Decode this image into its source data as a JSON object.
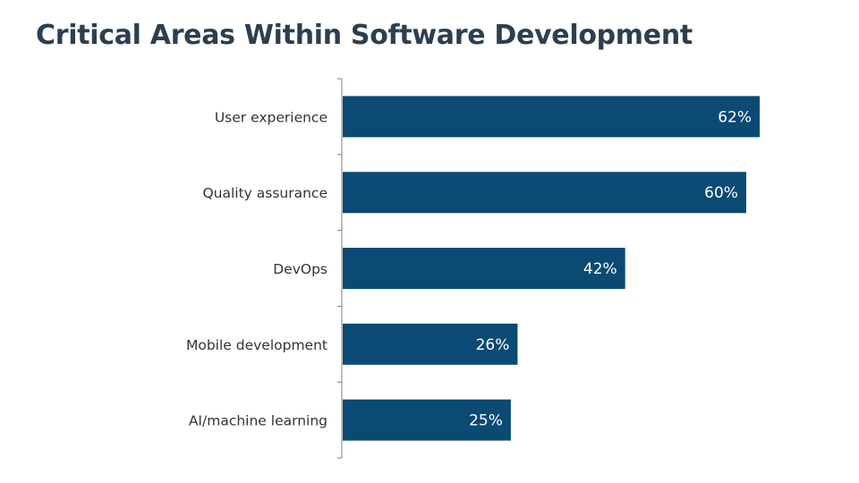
{
  "page": {
    "title": "Critical Areas Within Software Development"
  },
  "chart_data": {
    "type": "bar",
    "orientation": "horizontal",
    "title": "Critical Areas Within Software Development",
    "categories": [
      "User experience",
      "Quality assurance",
      "DevOps",
      "Mobile development",
      "AI/machine learning"
    ],
    "values": [
      62,
      60,
      42,
      26,
      25
    ],
    "value_labels": [
      "62%",
      "60%",
      "42%",
      "26%",
      "25%"
    ],
    "xlim": [
      0,
      70
    ],
    "xlabel": "",
    "ylabel": "",
    "grid": false,
    "legend": "none",
    "colors": {
      "bar": "#0b4a72",
      "axis": "#7f7f7f",
      "label": "#333333",
      "value_label": "#ffffff"
    }
  }
}
